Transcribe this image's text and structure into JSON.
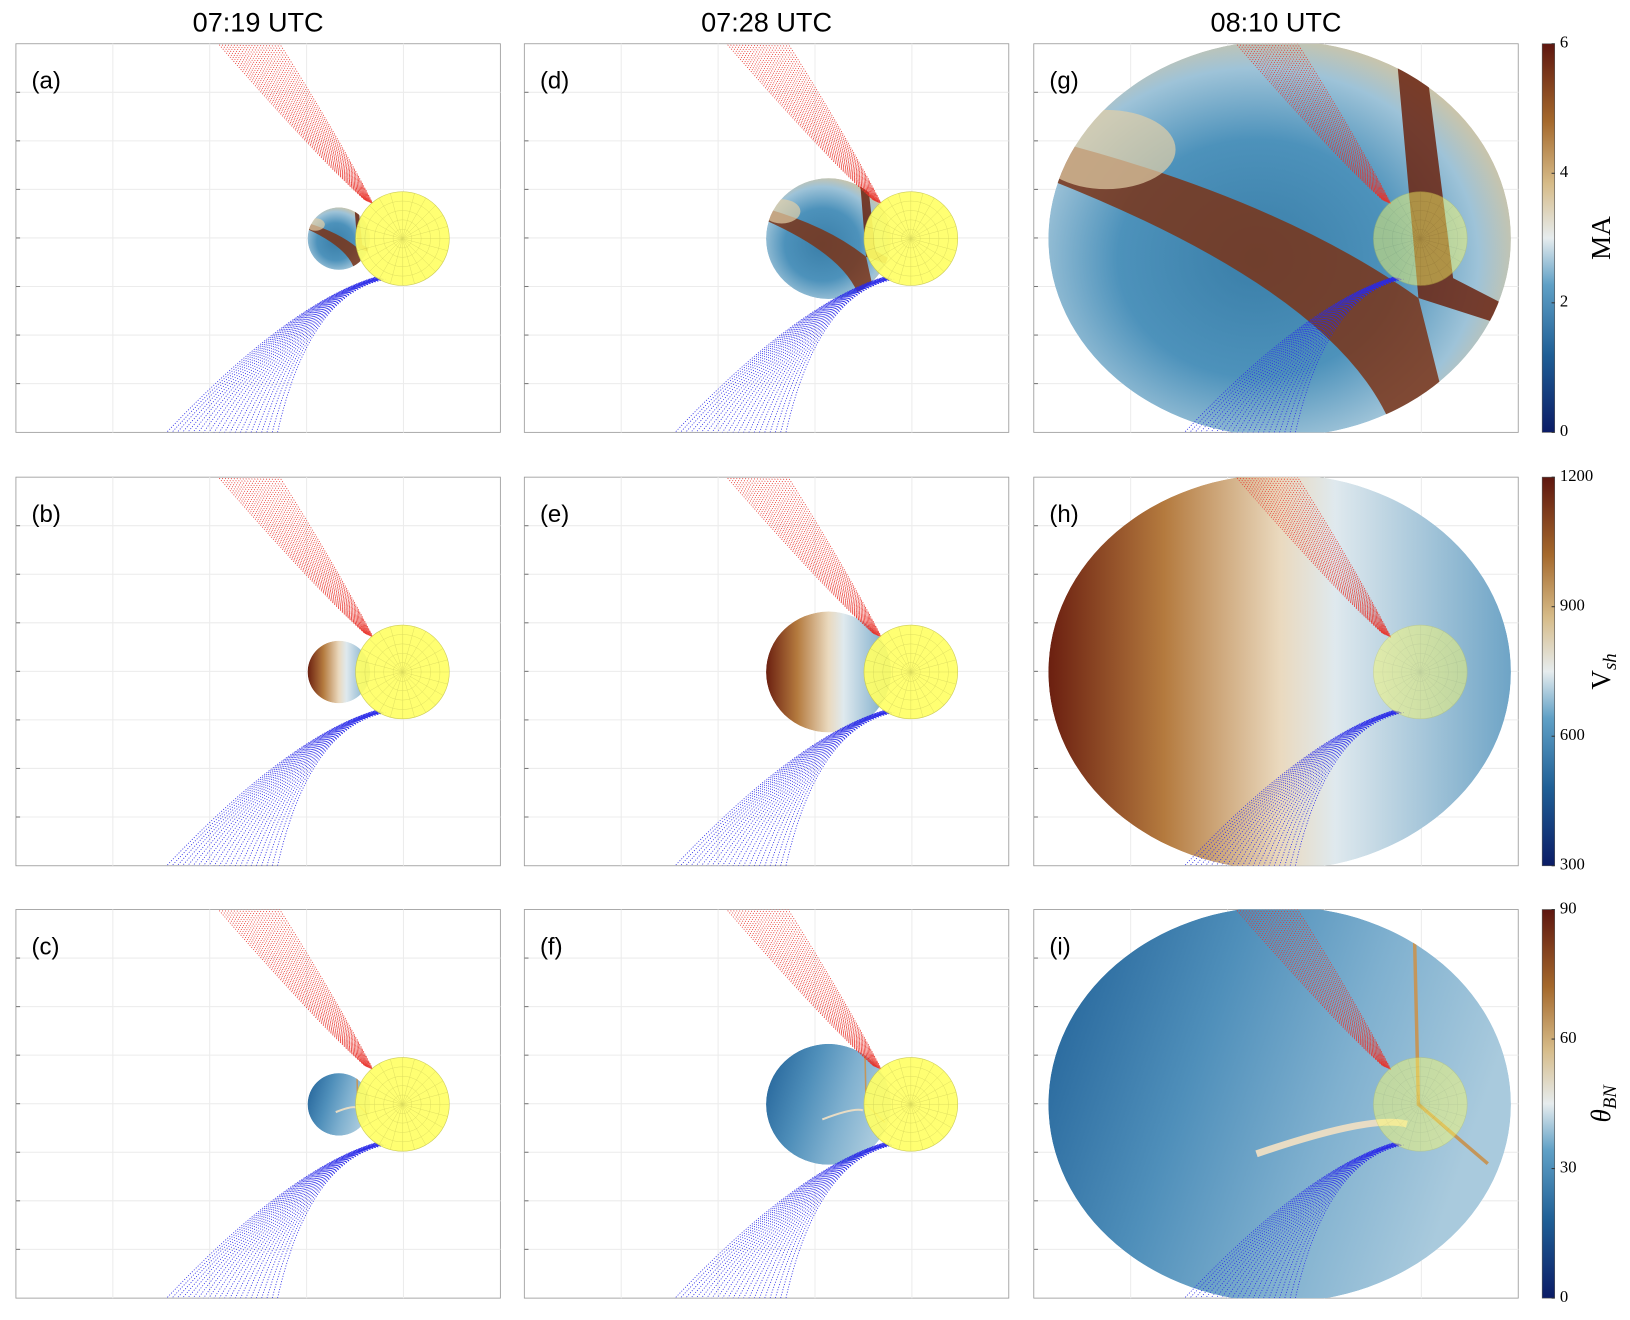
{
  "columns": [
    "07:19 UTC",
    "07:28 UTC",
    "08:10 UTC"
  ],
  "panels": [
    "(a)",
    "(b)",
    "(c)",
    "(d)",
    "(e)",
    "(f)",
    "(g)",
    "(h)",
    "(i)"
  ],
  "colorbars": [
    {
      "label": "MA",
      "lim": [
        0,
        6
      ],
      "ticks": [
        0,
        2,
        4,
        6
      ]
    },
    {
      "label": "V",
      "label_sub": "sh",
      "lim": [
        300,
        1200
      ],
      "ticks": [
        300,
        600,
        900,
        1200
      ]
    },
    {
      "label": "θ",
      "label_sub": "BN",
      "lim": [
        0,
        90
      ],
      "ticks": [
        0,
        30,
        60,
        90
      ]
    }
  ]
}
